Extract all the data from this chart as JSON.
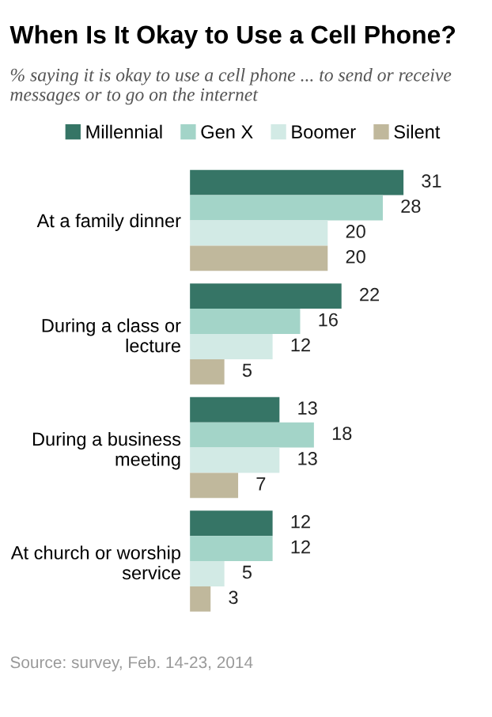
{
  "chart_data": {
    "type": "bar",
    "orientation": "horizontal",
    "title": "When Is It Okay to Use a Cell Phone?",
    "subtitle": "% saying it is okay to use a cell phone ... to send or receive messages or to go on the internet",
    "categories": [
      "At a family dinner",
      "During a class or\nlecture",
      "During a business\nmeeting",
      "At church or worship\nservice"
    ],
    "series": [
      {
        "name": "Millennial",
        "color": "#367566",
        "values": [
          31,
          22,
          13,
          12
        ]
      },
      {
        "name": "Gen X",
        "color": "#a3d4c8",
        "values": [
          28,
          16,
          18,
          12
        ]
      },
      {
        "name": "Boomer",
        "color": "#d2eae5",
        "values": [
          20,
          12,
          13,
          5
        ]
      },
      {
        "name": "Silent",
        "color": "#c0b89c",
        "values": [
          20,
          5,
          7,
          3
        ]
      }
    ],
    "data_labels": true,
    "legend": "top",
    "tick_labels": "y",
    "grid": false,
    "annotations": [
      "Source: survey, Feb. 14-23, 2014"
    ]
  }
}
